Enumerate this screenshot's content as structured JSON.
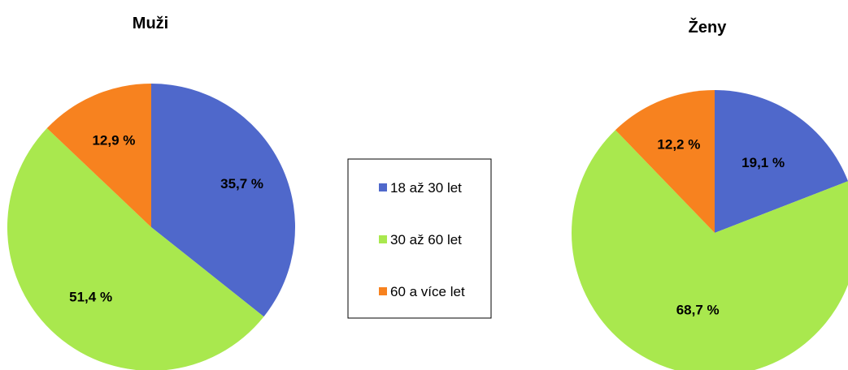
{
  "legend": {
    "items": [
      {
        "label": "18 až 30 let",
        "color": "#4F68CB"
      },
      {
        "label": "30 až 60 let",
        "color": "#A9E84E"
      },
      {
        "label": "60 a více let",
        "color": "#F7821F"
      }
    ]
  },
  "chart_data": [
    {
      "type": "pie",
      "title": "Muži",
      "categories": [
        "18 až 30 let",
        "30 až 60 let",
        "60 a více let"
      ],
      "values": [
        35.7,
        51.4,
        12.9
      ],
      "labels": [
        "35,7 %",
        "51,4 %",
        "12,9 %"
      ],
      "colors": [
        "#4F68CB",
        "#A9E84E",
        "#F7821F"
      ],
      "start": "12 o'clock",
      "direction": "clockwise"
    },
    {
      "type": "pie",
      "title": "Ženy",
      "categories": [
        "18 až 30 let",
        "30 až 60 let",
        "60 a více let"
      ],
      "values": [
        19.1,
        68.7,
        12.2
      ],
      "labels": [
        "19,1 %",
        "68,7 %",
        "12,2 %"
      ],
      "colors": [
        "#4F68CB",
        "#A9E84E",
        "#F7821F"
      ],
      "start": "12 o'clock",
      "direction": "clockwise"
    }
  ]
}
